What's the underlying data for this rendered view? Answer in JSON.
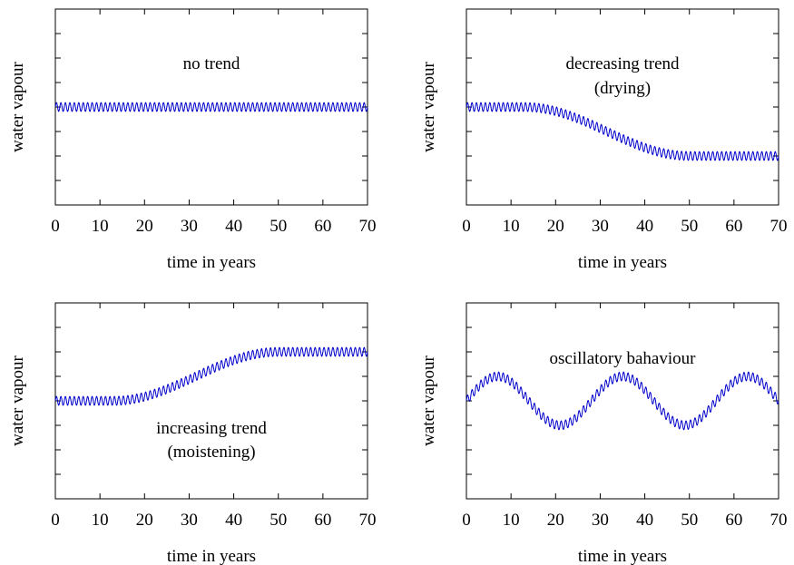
{
  "figure": {
    "colors": {
      "series": "#0000cc",
      "axis": "#000000"
    }
  },
  "chart_data": [
    {
      "type": "line",
      "xlabel": "time in years",
      "ylabel": "water vapour",
      "xlim": [
        0,
        70
      ],
      "ylim": [
        0,
        8
      ],
      "xticks": [
        "0",
        "10",
        "20",
        "30",
        "40",
        "50",
        "60",
        "70"
      ],
      "yticks_labeled": false,
      "grid": false,
      "annotation": [
        "no trend"
      ],
      "series": [
        {
          "x_range": [
            0,
            70
          ],
          "baseline": 4,
          "oscillation_amplitude": 0.18,
          "oscillation_cycles_per_year": 1
        }
      ]
    },
    {
      "type": "line",
      "xlabel": "time in years",
      "ylabel": "water vapour",
      "xlim": [
        0,
        70
      ],
      "ylim": [
        0,
        8
      ],
      "xticks": [
        "0",
        "10",
        "20",
        "30",
        "40",
        "50",
        "60",
        "70"
      ],
      "yticks_labeled": false,
      "grid": false,
      "annotation": [
        "decreasing trend",
        "(drying)"
      ],
      "series": [
        {
          "x_range": [
            0,
            70
          ],
          "trend": {
            "start_value": 4,
            "end_value": 2,
            "ramp_start": 13,
            "ramp_end": 50
          },
          "oscillation_amplitude": 0.18,
          "oscillation_cycles_per_year": 1
        }
      ]
    },
    {
      "type": "line",
      "xlabel": "time in years",
      "ylabel": "water vapour",
      "xlim": [
        0,
        70
      ],
      "ylim": [
        0,
        8
      ],
      "xticks": [
        "0",
        "10",
        "20",
        "30",
        "40",
        "50",
        "60",
        "70"
      ],
      "yticks_labeled": false,
      "grid": false,
      "annotation": [
        "increasing trend",
        "(moistening)"
      ],
      "series": [
        {
          "x_range": [
            0,
            70
          ],
          "trend": {
            "start_value": 4,
            "end_value": 6,
            "ramp_start": 13,
            "ramp_end": 50
          },
          "oscillation_amplitude": 0.18,
          "oscillation_cycles_per_year": 1
        }
      ]
    },
    {
      "type": "line",
      "xlabel": "time in years",
      "ylabel": "water vapour",
      "xlim": [
        0,
        70
      ],
      "ylim": [
        0,
        8
      ],
      "xticks": [
        "0",
        "10",
        "20",
        "30",
        "40",
        "50",
        "60",
        "70"
      ],
      "yticks_labeled": false,
      "grid": false,
      "annotation": [
        "oscillatory bahaviour"
      ],
      "series": [
        {
          "x_range": [
            0,
            70
          ],
          "baseline": 4,
          "slow_oscillation": {
            "amplitude": 1,
            "period_years": 28
          },
          "oscillation_amplitude": 0.18,
          "oscillation_cycles_per_year": 1
        }
      ]
    }
  ]
}
